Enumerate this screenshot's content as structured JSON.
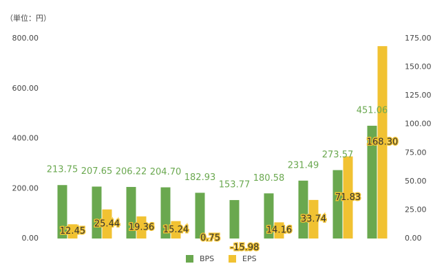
{
  "chart_data": {
    "type": "bar",
    "subtitle": "（単位：円）",
    "categories": [
      null,
      null,
      null,
      null,
      null,
      null,
      null,
      null,
      null,
      null
    ],
    "series": [
      {
        "name": "BPS",
        "color": "#6aa84f",
        "axis": "y",
        "values": [
          213.75,
          207.65,
          206.22,
          204.7,
          182.93,
          153.77,
          180.58,
          231.49,
          273.57,
          451.06
        ],
        "value_labels": [
          "213.75",
          "207.65",
          "206.22",
          "204.70",
          "182.93",
          "153.77",
          "180.58",
          "231.49",
          "273.57",
          "451.06"
        ]
      },
      {
        "name": "EPS",
        "color": "#f1c232",
        "axis": "y2",
        "values": [
          12.45,
          25.44,
          19.36,
          15.24,
          0.75,
          -15.98,
          14.16,
          33.74,
          71.83,
          168.3
        ],
        "value_labels": [
          "12.45",
          "25.44",
          "19.36",
          "15.24",
          "0.75",
          "-15.98",
          "14.16",
          "33.74",
          "71.83",
          "168.30"
        ]
      }
    ],
    "ylim": [
      0,
      800
    ],
    "yticks": [
      {
        "value": 0,
        "label": "0.00"
      },
      {
        "value": 200,
        "label": "200.00"
      },
      {
        "value": 400,
        "label": "400.00"
      },
      {
        "value": 600,
        "label": "600.00"
      },
      {
        "value": 800,
        "label": "800.00"
      }
    ],
    "y2lim": [
      0,
      175
    ],
    "y2ticks": [
      {
        "value": 0,
        "label": "0.00"
      },
      {
        "value": 25,
        "label": "25.00"
      },
      {
        "value": 50,
        "label": "50.00"
      },
      {
        "value": 75,
        "label": "75.00"
      },
      {
        "value": 100,
        "label": "100.00"
      },
      {
        "value": 125,
        "label": "125.00"
      },
      {
        "value": 150,
        "label": "150.00"
      },
      {
        "value": 175,
        "label": "175.00"
      }
    ],
    "legend": "bottom"
  }
}
